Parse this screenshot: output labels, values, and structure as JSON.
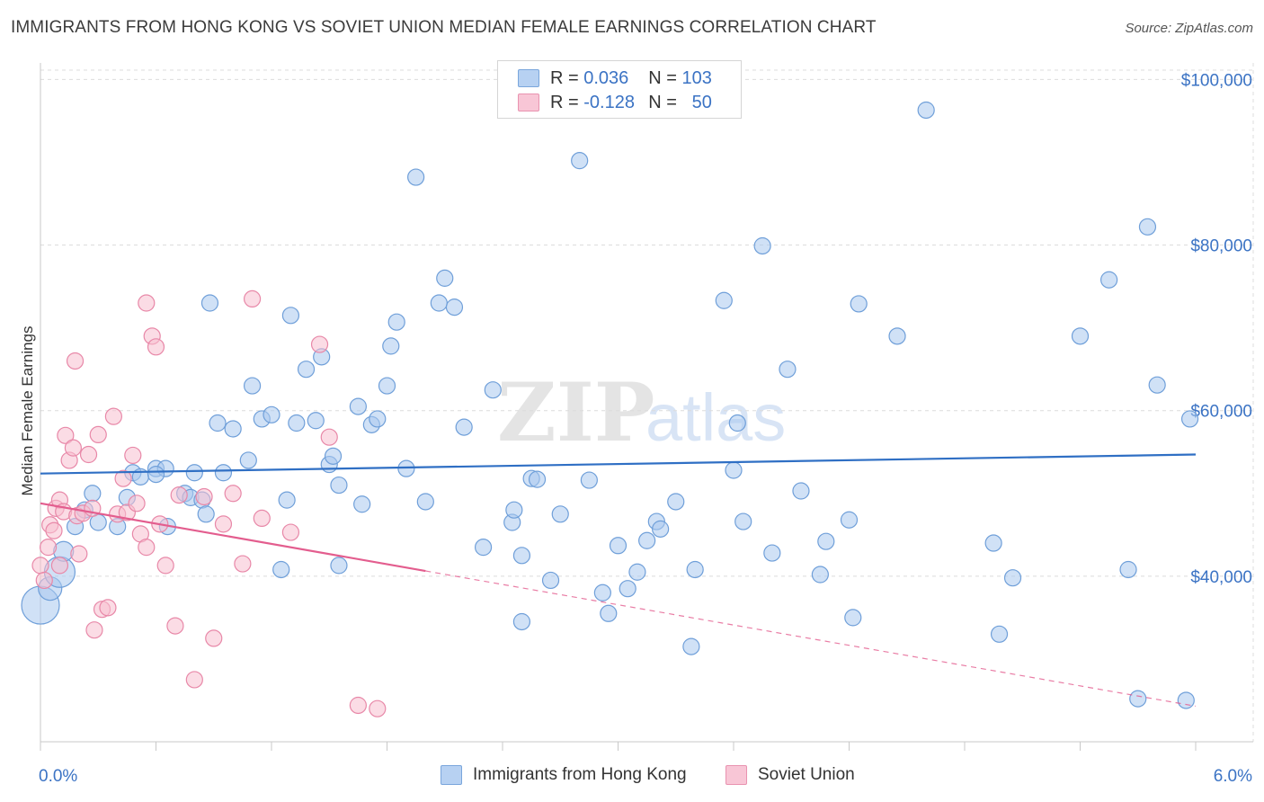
{
  "title": "IMMIGRANTS FROM HONG KONG VS SOVIET UNION MEDIAN FEMALE EARNINGS CORRELATION CHART",
  "source": "Source: ZipAtlas.com",
  "watermark": {
    "zip": "ZIP",
    "atlas": "atlas"
  },
  "legend": {
    "r_label": "R =",
    "n_label": "N =",
    "rows": [
      {
        "r": "0.036",
        "n": "103",
        "fill": "#b7d1f2",
        "stroke": "#7aa6dc"
      },
      {
        "r": "-0.128",
        "n": "50",
        "fill": "#f8c6d6",
        "stroke": "#e993b0"
      }
    ]
  },
  "colors": {
    "blue_fill": "#a9c8ee",
    "blue_stroke": "#6f9fd9",
    "blue_line": "#2f6fc4",
    "pink_fill": "#f7bfd0",
    "pink_stroke": "#e888a8",
    "pink_line": "#e35d8e",
    "grid": "#dcdcdc",
    "tick_text": "#3b73c4"
  },
  "chart_data": {
    "type": "scatter",
    "title": "IMMIGRANTS FROM HONG KONG VS SOVIET UNION MEDIAN FEMALE EARNINGS CORRELATION CHART",
    "xlabel": "",
    "ylabel": "Median Female Earnings",
    "xlim": [
      0,
      6.0
    ],
    "ylim": [
      20000,
      102000
    ],
    "x_tick_labels": [
      "0.0%",
      "6.0%"
    ],
    "y_ticks": [
      40000,
      60000,
      80000,
      100000
    ],
    "y_tick_labels": [
      "$40,000",
      "$60,000",
      "$80,000",
      "$100,000"
    ],
    "series": [
      {
        "name": "Immigrants from Hong Kong",
        "trend": {
          "x0": 0.0,
          "y0": 52400,
          "x1": 6.0,
          "y1": 54700,
          "solid_to": 6.0
        },
        "points": [
          [
            0.0,
            36500,
            22
          ],
          [
            0.05,
            38500,
            14
          ],
          [
            0.1,
            40500,
            18
          ],
          [
            0.12,
            43000,
            12
          ],
          [
            0.18,
            46000,
            10
          ],
          [
            0.23,
            48000,
            10
          ],
          [
            0.27,
            50000,
            10
          ],
          [
            0.3,
            46500,
            10
          ],
          [
            0.4,
            46000,
            10
          ],
          [
            0.45,
            49500,
            10
          ],
          [
            0.48,
            52500,
            10
          ],
          [
            0.52,
            52000,
            10
          ],
          [
            0.6,
            53000,
            10
          ],
          [
            0.65,
            53000,
            10
          ],
          [
            0.66,
            46000,
            10
          ],
          [
            0.75,
            50000,
            10
          ],
          [
            0.78,
            49500,
            10
          ],
          [
            0.84,
            49200,
            10
          ],
          [
            0.88,
            73000,
            10
          ],
          [
            0.8,
            52500,
            10
          ],
          [
            0.86,
            47500,
            10
          ],
          [
            0.92,
            58500,
            10
          ],
          [
            0.95,
            52500,
            10
          ],
          [
            1.0,
            57800,
            10
          ],
          [
            1.08,
            54000,
            10
          ],
          [
            1.1,
            63000,
            10
          ],
          [
            1.15,
            59000,
            10
          ],
          [
            1.2,
            59500,
            10
          ],
          [
            1.28,
            49200,
            10
          ],
          [
            1.3,
            71500,
            10
          ],
          [
            1.33,
            58500,
            10
          ],
          [
            1.38,
            65000,
            10
          ],
          [
            1.43,
            58800,
            10
          ],
          [
            1.46,
            66500,
            10
          ],
          [
            1.5,
            53500,
            10
          ],
          [
            1.52,
            54500,
            10
          ],
          [
            1.55,
            51000,
            10
          ],
          [
            1.65,
            60500,
            10
          ],
          [
            1.67,
            48700,
            10
          ],
          [
            1.72,
            58300,
            10
          ],
          [
            1.75,
            59000,
            10
          ],
          [
            1.8,
            63000,
            10
          ],
          [
            1.82,
            67800,
            10
          ],
          [
            1.85,
            70700,
            10
          ],
          [
            1.9,
            53000,
            10
          ],
          [
            1.95,
            88200,
            10
          ],
          [
            2.0,
            49000,
            10
          ],
          [
            2.07,
            73000,
            10
          ],
          [
            2.1,
            76000,
            10
          ],
          [
            2.15,
            72500,
            10
          ],
          [
            2.2,
            58000,
            10
          ],
          [
            2.3,
            43500,
            10
          ],
          [
            2.35,
            62500,
            10
          ],
          [
            2.45,
            46500,
            10
          ],
          [
            2.46,
            48000,
            10
          ],
          [
            2.5,
            34500,
            10
          ],
          [
            2.55,
            51800,
            10
          ],
          [
            2.58,
            51700,
            10
          ],
          [
            2.65,
            39500,
            10
          ],
          [
            2.7,
            47500,
            10
          ],
          [
            2.8,
            90200,
            10
          ],
          [
            2.85,
            51600,
            10
          ],
          [
            2.92,
            38000,
            10
          ],
          [
            2.95,
            35500,
            10
          ],
          [
            3.0,
            43700,
            10
          ],
          [
            3.05,
            38500,
            10
          ],
          [
            3.1,
            40500,
            10
          ],
          [
            3.15,
            44300,
            10
          ],
          [
            3.2,
            46600,
            10
          ],
          [
            3.22,
            45700,
            10
          ],
          [
            3.3,
            49000,
            10
          ],
          [
            3.38,
            31500,
            10
          ],
          [
            3.4,
            40800,
            10
          ],
          [
            3.55,
            73300,
            10
          ],
          [
            3.6,
            52800,
            10
          ],
          [
            3.62,
            58500,
            10
          ],
          [
            3.65,
            46600,
            10
          ],
          [
            3.75,
            79900,
            10
          ],
          [
            3.8,
            42800,
            10
          ],
          [
            3.88,
            65000,
            10
          ],
          [
            3.95,
            50300,
            10
          ],
          [
            4.05,
            40200,
            10
          ],
          [
            4.08,
            44200,
            10
          ],
          [
            4.2,
            46800,
            10
          ],
          [
            4.22,
            35000,
            10
          ],
          [
            4.25,
            72900,
            10
          ],
          [
            4.45,
            69000,
            10
          ],
          [
            4.6,
            96300,
            10
          ],
          [
            4.95,
            44000,
            10
          ],
          [
            4.98,
            33000,
            10
          ],
          [
            5.05,
            39800,
            10
          ],
          [
            5.4,
            69000,
            10
          ],
          [
            5.55,
            75800,
            10
          ],
          [
            5.65,
            40800,
            10
          ],
          [
            5.7,
            25200,
            10
          ],
          [
            5.75,
            82200,
            10
          ],
          [
            5.8,
            63100,
            10
          ],
          [
            5.95,
            25000,
            10
          ],
          [
            5.97,
            59000,
            10
          ],
          [
            2.5,
            42500,
            10
          ],
          [
            1.25,
            40800,
            10
          ],
          [
            1.55,
            41300,
            10
          ],
          [
            0.6,
            52300,
            10
          ]
        ]
      },
      {
        "name": "Soviet Union",
        "trend": {
          "x0": 0.0,
          "y0": 48800,
          "x1": 6.0,
          "y1": 24300,
          "solid_to": 2.0
        },
        "points": [
          [
            0.0,
            41300,
            10
          ],
          [
            0.02,
            39500,
            10
          ],
          [
            0.04,
            43500,
            10
          ],
          [
            0.05,
            46200,
            10
          ],
          [
            0.07,
            45500,
            10
          ],
          [
            0.08,
            48200,
            10
          ],
          [
            0.1,
            49200,
            10
          ],
          [
            0.12,
            47800,
            10
          ],
          [
            0.13,
            57000,
            10
          ],
          [
            0.15,
            54000,
            10
          ],
          [
            0.17,
            55500,
            10
          ],
          [
            0.18,
            66000,
            10
          ],
          [
            0.19,
            47300,
            10
          ],
          [
            0.2,
            42700,
            10
          ],
          [
            0.22,
            47600,
            10
          ],
          [
            0.25,
            54700,
            10
          ],
          [
            0.27,
            48200,
            10
          ],
          [
            0.28,
            33500,
            10
          ],
          [
            0.3,
            57100,
            10
          ],
          [
            0.32,
            36000,
            10
          ],
          [
            0.35,
            36200,
            10
          ],
          [
            0.38,
            59300,
            10
          ],
          [
            0.4,
            47500,
            10
          ],
          [
            0.43,
            51800,
            10
          ],
          [
            0.45,
            47700,
            10
          ],
          [
            0.48,
            54600,
            10
          ],
          [
            0.5,
            48800,
            10
          ],
          [
            0.52,
            45100,
            10
          ],
          [
            0.55,
            73000,
            10
          ],
          [
            0.58,
            69000,
            10
          ],
          [
            0.6,
            67700,
            10
          ],
          [
            0.62,
            46300,
            10
          ],
          [
            0.65,
            41300,
            10
          ],
          [
            0.7,
            34000,
            10
          ],
          [
            0.72,
            49800,
            10
          ],
          [
            0.8,
            27500,
            10
          ],
          [
            0.85,
            49600,
            10
          ],
          [
            0.9,
            32500,
            10
          ],
          [
            0.95,
            46300,
            10
          ],
          [
            1.0,
            50000,
            10
          ],
          [
            1.05,
            41500,
            10
          ],
          [
            1.1,
            73500,
            10
          ],
          [
            1.15,
            47000,
            10
          ],
          [
            1.3,
            45300,
            10
          ],
          [
            1.45,
            68000,
            10
          ],
          [
            1.5,
            56800,
            10
          ],
          [
            1.65,
            24400,
            10
          ],
          [
            1.75,
            24000,
            10
          ],
          [
            0.1,
            41300,
            10
          ],
          [
            0.55,
            43500,
            10
          ]
        ]
      }
    ]
  }
}
